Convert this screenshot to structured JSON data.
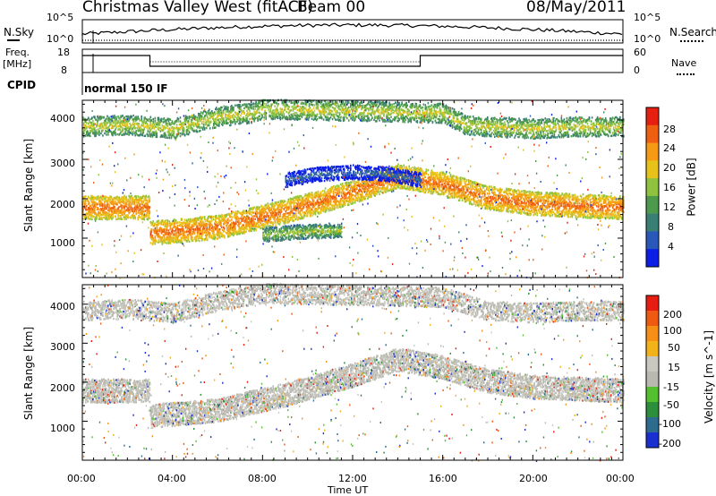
{
  "header": {
    "station": "Christmas Valley West (fitACF)",
    "beam": "Beam 00",
    "date": "08/May/2011"
  },
  "panels": {
    "noise": {
      "left_label": "N.Sky",
      "right_label": "N.Search",
      "left_ticks": [
        "10^5",
        "10^0"
      ],
      "right_ticks": [
        "10^5",
        "10^0"
      ]
    },
    "freq": {
      "left_label_1": "Freq.",
      "left_label_2": "[MHz]",
      "right_label": "Nave",
      "left_ticks": [
        "18",
        "8"
      ],
      "right_ticks": [
        "60",
        "0"
      ]
    },
    "cpid": {
      "label": "CPID",
      "mode_text": "normal 150 IF"
    }
  },
  "colors": {
    "power": [
      "#0a1ee6",
      "#2a58b8",
      "#3a7f73",
      "#4d9a4d",
      "#8fc23f",
      "#e6c21a",
      "#f59a15",
      "#ef5f12",
      "#e62010"
    ],
    "velocity": [
      "#1a2fd0",
      "#2d6b8f",
      "#2d8f3c",
      "#55c02f",
      "#b9b9b1",
      "#c8c8c0",
      "#f2b21a",
      "#f58f15",
      "#ef5a12",
      "#e61d10"
    ]
  },
  "chart_data": [
    {
      "type": "heatmap",
      "panel": "power",
      "ylabel": "Slant Range [km]",
      "xlim": [
        "00:00",
        "24:00"
      ],
      "ylim": [
        0,
        4500
      ],
      "yticks": [
        "1000",
        "2000",
        "3000",
        "4000"
      ],
      "colorbar": {
        "label": "Power [dB]",
        "ticks": [
          "28",
          "24",
          "20",
          "16",
          "12",
          "8",
          "4"
        ],
        "range": [
          0,
          30
        ]
      },
      "features": [
        {
          "name": "lower band",
          "x_hours": [
            0,
            3,
            3,
            6,
            9,
            12,
            14,
            16,
            18,
            20,
            22,
            24
          ],
          "range_km": [
            1800,
            1800,
            1150,
            1300,
            1700,
            2200,
            2600,
            2400,
            2050,
            1900,
            1850,
            1800
          ],
          "power_db": 26
        },
        {
          "name": "upper band",
          "x_hours": [
            0,
            2,
            4,
            6,
            7.5,
            8,
            16,
            17,
            18,
            20,
            22,
            24
          ],
          "range_km": [
            3850,
            3900,
            3800,
            4100,
            4200,
            4300,
            4200,
            3900,
            3850,
            3800,
            3850,
            3850
          ],
          "power_db": 18
        },
        {
          "name": "mid-day cluster",
          "x_hours": [
            9,
            10.5,
            12,
            13.5,
            15
          ],
          "range_km": [
            2500,
            2650,
            2700,
            2650,
            2500
          ],
          "power_db": 6
        },
        {
          "name": "small patch",
          "x_hours": [
            8,
            9.5,
            11.5
          ],
          "range_km": [
            1100,
            1180,
            1220
          ],
          "power_db": 16
        }
      ]
    },
    {
      "type": "heatmap",
      "panel": "velocity",
      "ylabel": "Slant Range [km]",
      "xlabel": "Time UT",
      "xlim": [
        "00:00",
        "24:00"
      ],
      "ylim": [
        0,
        4500
      ],
      "yticks": [
        "1000",
        "2000",
        "3000",
        "4000"
      ],
      "xticks": [
        "00:00",
        "04:00",
        "08:00",
        "12:00",
        "16:00",
        "20:00",
        "00:00"
      ],
      "colorbar": {
        "label": "Velocity [m s^-1]",
        "ticks": [
          "200",
          "100",
          "50",
          "15",
          "-15",
          "-50",
          "-100",
          "-200"
        ],
        "range": [
          -250,
          250
        ]
      },
      "features": [
        {
          "name": "ground scatter lower band",
          "x_hours": [
            0,
            3,
            3,
            6,
            9,
            12,
            14,
            16,
            18,
            20,
            22,
            24
          ],
          "range_km": [
            1800,
            1800,
            1150,
            1300,
            1700,
            2200,
            2600,
            2400,
            2050,
            1900,
            1850,
            1800
          ],
          "velocity_ms": 0
        },
        {
          "name": "ground scatter upper band",
          "x_hours": [
            0,
            2,
            4,
            6,
            8,
            16,
            18,
            20,
            22,
            24
          ],
          "range_km": [
            3850,
            3900,
            3800,
            4100,
            4300,
            4200,
            3850,
            3800,
            3850,
            3850
          ],
          "velocity_ms": 0
        }
      ]
    }
  ]
}
